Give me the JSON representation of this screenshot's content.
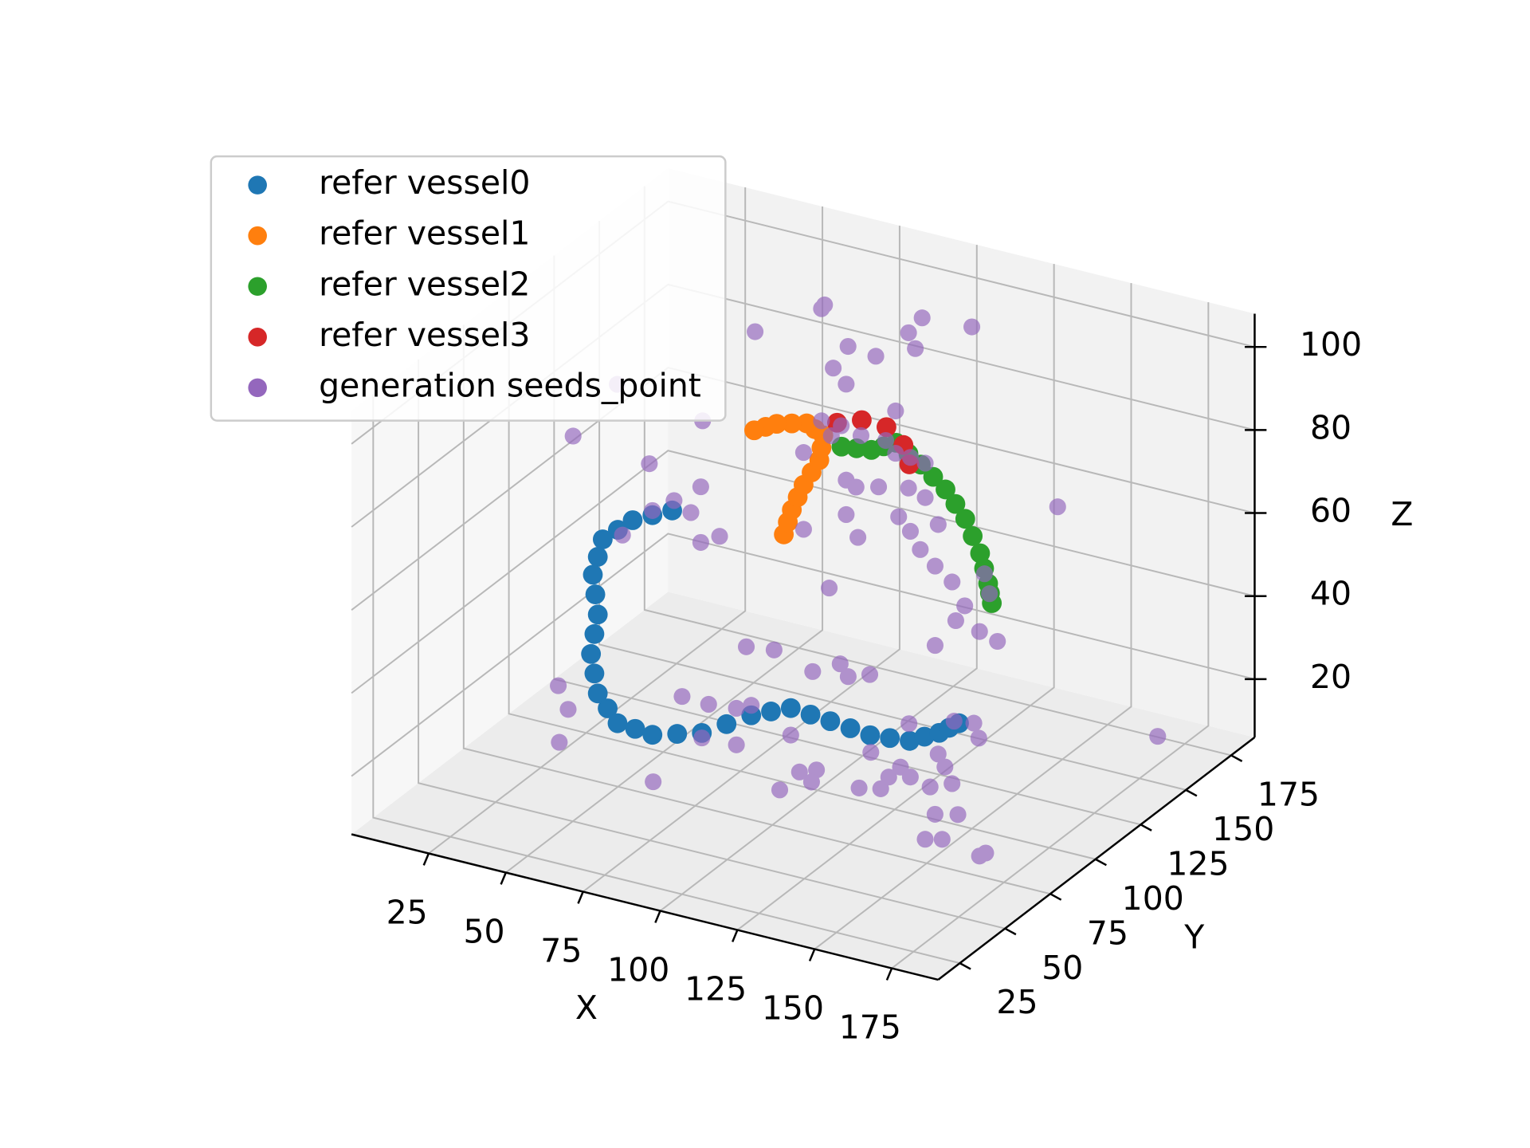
{
  "chart_data": {
    "type": "scatter",
    "xlabel": "X",
    "ylabel": "Y",
    "zlabel": "Z",
    "xlim": [
      0,
      190
    ],
    "ylim": [
      13,
      188
    ],
    "zlim": [
      6,
      108
    ],
    "xticks": [
      25,
      50,
      75,
      100,
      125,
      150,
      175
    ],
    "yticks": [
      25,
      50,
      75,
      100,
      125,
      150,
      175
    ],
    "zticks": [
      20,
      40,
      60,
      80,
      100
    ],
    "grid": true,
    "legend": "upper left",
    "series": [
      {
        "name": "refer vessel0",
        "color": "#1f77b4",
        "x": [
          52.9,
          46.5,
          40.1,
          35.3,
          30.4,
          28.8,
          27.2,
          28,
          28.8,
          27.7,
          26.6,
          27.7,
          28.8,
          32,
          35.2,
          40.9,
          46.5,
          54.5,
          62.5,
          70.5,
          78.5,
          84.9,
          91.3,
          97.7,
          104.1,
          110.6,
          117,
          123.4,
          129.8,
          134.6,
          139.4,
          142.6,
          145.8
        ],
        "y": [
          100,
          100,
          100,
          100,
          100,
          100,
          100,
          100,
          100,
          100,
          100,
          100,
          100,
          100,
          100,
          100,
          100,
          100,
          100,
          100,
          100,
          100,
          100,
          100,
          100,
          100,
          100,
          100,
          100,
          100,
          100,
          100,
          100
        ],
        "z": [
          64.7,
          62.4,
          60,
          56.8,
          53.6,
          49.1,
          44.5,
          39.9,
          35.2,
          30.3,
          25.3,
          20.8,
          16.2,
          13.2,
          10.2,
          9.9,
          9.5,
          11.2,
          12.9,
          16.5,
          20.1,
          22.2,
          24.2,
          23.8,
          23.4,
          22.9,
          22.4,
          22.9,
          23.4,
          25.3,
          27.1,
          28.9,
          30.6
        ]
      },
      {
        "name": "refer vessel1",
        "color": "#ff7f0e",
        "x": [
          58,
          59.3,
          60.6,
          62.5,
          64.4,
          67,
          69.5,
          70.2,
          70.8,
          68.1,
          65.4,
          60.6,
          55.7,
          52.1,
          48.4
        ],
        "y": [
          153,
          153,
          153,
          153,
          153,
          153,
          153,
          153,
          153,
          153,
          153,
          153,
          153,
          153,
          153
        ],
        "z": [
          42.2,
          45.4,
          48.6,
          52,
          55.3,
          58.8,
          62.2,
          65.3,
          68.4,
          69.4,
          70.3,
          69.4,
          68.4,
          67,
          65.5
        ]
      },
      {
        "name": "refer vessel2",
        "color": "#2ca02c",
        "x": [
          71.4,
          76.3,
          81.1,
          85.1,
          89.1,
          93.1,
          97.1,
          101.1,
          105.1,
          108.3,
          111.5,
          113.9,
          116.3,
          117.6,
          118.9,
          119.5,
          120.1
        ],
        "y": [
          162,
          162,
          162,
          162,
          162,
          162,
          162,
          162,
          162,
          162,
          162,
          162,
          162,
          162,
          162,
          162,
          162
        ],
        "z": [
          62.8,
          63.3,
          63.8,
          65.4,
          67,
          65.1,
          63.2,
          61,
          58.7,
          55.8,
          52.8,
          49.1,
          45.4,
          42,
          38.6,
          36.4,
          34.1
        ]
      },
      {
        "name": "refer vessel3",
        "color": "#d62728",
        "x": [
          72.9,
          80.9,
          88.9,
          94.4,
          96.3
        ],
        "y": [
          157,
          157,
          157,
          157,
          157
        ],
        "z": [
          70.5,
          72.6,
          72.4,
          69.1,
          64.8
        ]
      },
      {
        "name": "generation seeds_point",
        "color": "#9467bd",
        "x": [
          70.2,
          71.2,
          102.8,
          118.9,
          98.4,
          48.7,
          100.6,
          87.8,
          74,
          78.8,
          78.2,
          94.2,
          31.7,
          70.2,
          76.6,
          73.4,
          83,
          91,
          94.2,
          99,
          103.8,
          64.4,
          78.2,
          81.4,
          88.7,
          98.4,
          103.8,
          78.2,
          95.2,
          82,
          99,
          108,
          146.7,
          64.4,
          31.1,
          27.9,
          31.1,
          37.2,
          102.2,
          107,
          112.5,
          123,
          124.6,
          116.6,
          113.7,
          121.4,
          127.2,
          107,
          72.7,
          179.1,
          35.1,
          20.8,
          45.5,
          53.5,
          36.8,
          46.5,
          16,
          19.2,
          76.9,
          85.9,
          56.1,
          64.7,
          73.7,
          78.5,
          98.4,
          107.3,
          109.9,
          116.9,
          129.6,
          144.2,
          150.6,
          152.2,
          91.3,
          73.7,
          62.5,
          46.8,
          77.2,
          118.2,
          124.6,
          130.1,
          128.5,
          143.9,
          150.9,
          153.5,
          147.7,
          157.3,
          160.5,
          166.9,
          171.7,
          174,
          168.5,
          175.9,
          165.3,
          170.8,
          182.9,
          184.9,
          169.5
        ],
        "y": [
          153,
          153,
          153,
          153,
          153,
          153,
          153,
          153,
          153,
          153,
          153,
          153,
          153,
          153,
          153,
          153,
          153,
          153,
          153,
          153,
          153,
          153,
          153,
          153,
          153,
          153,
          153,
          153,
          153,
          153,
          153,
          153,
          153,
          153,
          153,
          153,
          153,
          153,
          153,
          153,
          153,
          153,
          153,
          153,
          153,
          153,
          153,
          153,
          153,
          153,
          100,
          100,
          100,
          100,
          100,
          100,
          100,
          100,
          100,
          100,
          100,
          100,
          100,
          100,
          100,
          100,
          100,
          100,
          100,
          100,
          100,
          100,
          100,
          100,
          100,
          48,
          48,
          48,
          48,
          48,
          48,
          48,
          48,
          48,
          48,
          48,
          48,
          48,
          48,
          48,
          48,
          48,
          48,
          48,
          48,
          48,
          48
        ],
        "z": [
          98.8,
          99.9,
          102.6,
          103.4,
          98.2,
          89.3,
          94.8,
          90.6,
          85.2,
          91.3,
          82.1,
          78.6,
          64.7,
          71.8,
          71.8,
          68.8,
          70.6,
          70.9,
          68.4,
          68.3,
          67.8,
          63.1,
          59,
          57.9,
          59.3,
          60.8,
          59.5,
          50.7,
          53.3,
          45.9,
          50.5,
          53.8,
          65.2,
          44.6,
          48.7,
          41.9,
          35.3,
          37.9,
          46.7,
          43.6,
          40.8,
          44.7,
          40.2,
          35.8,
          31.7,
          30.5,
          29.2,
          24.5,
          32,
          15.9,
          91.8,
          76.7,
          74.6,
          67.2,
          55.8,
          63.5,
          15.7,
          10.6,
          36.3,
          37.2,
          20.5,
          20.2,
          20.9,
          22.5,
          34.3,
          37.8,
          35.2,
          37,
          27.5,
          30.8,
          31.5,
          28.2,
          17.7,
          12.1,
          11.7,
          25.1,
          21.2,
          26.8,
          32.3,
          33.8,
          30.6,
          32,
          33.1,
          36.4,
          41.3,
          39.5,
          37.7,
          36.5,
          42.2,
          38.6,
          30.2,
          31.5,
          23.6,
          24.6,
          22.8,
          23.9,
          44.9
        ]
      }
    ]
  }
}
